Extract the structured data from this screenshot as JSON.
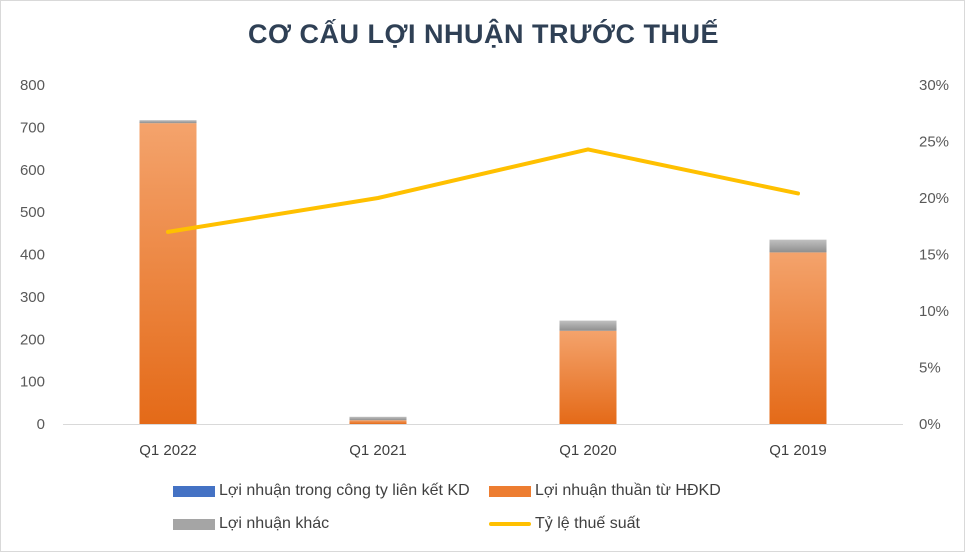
{
  "chart_data": {
    "type": "bar",
    "title": "CƠ CẤU LỢI NHUẬN TRƯỚC THUẾ",
    "categories": [
      "Q1 2022",
      "Q1 2021",
      "Q1 2020",
      "Q1 2019"
    ],
    "stacked": true,
    "series": [
      {
        "name": "Lợi nhuận trong công ty liên kết KD",
        "axis": "left",
        "color": "#4472c4",
        "values": [
          0,
          0,
          0,
          0
        ]
      },
      {
        "name": "Lợi nhuận thuần từ HĐKD",
        "axis": "left",
        "color": "#ed7d31",
        "values": [
          710,
          9,
          220,
          405
        ]
      },
      {
        "name": "Lợi nhuận khác",
        "axis": "left",
        "color": "#a5a5a5",
        "values": [
          7,
          8,
          24,
          30
        ]
      },
      {
        "name": "Tỷ lệ thuế suất",
        "axis": "right",
        "type": "line",
        "color": "#ffc000",
        "values": [
          0.17,
          0.2,
          0.243,
          0.204
        ]
      }
    ],
    "y_left": {
      "ylim": [
        0,
        800
      ],
      "ticks": [
        "0",
        "100",
        "200",
        "300",
        "400",
        "500",
        "600",
        "700",
        "800"
      ]
    },
    "y_right": {
      "ylim": [
        0,
        0.3
      ],
      "ticks": [
        "0%",
        "5%",
        "10%",
        "15%",
        "20%",
        "25%",
        "30%"
      ]
    },
    "grid": false,
    "legend_position": "bottom"
  }
}
